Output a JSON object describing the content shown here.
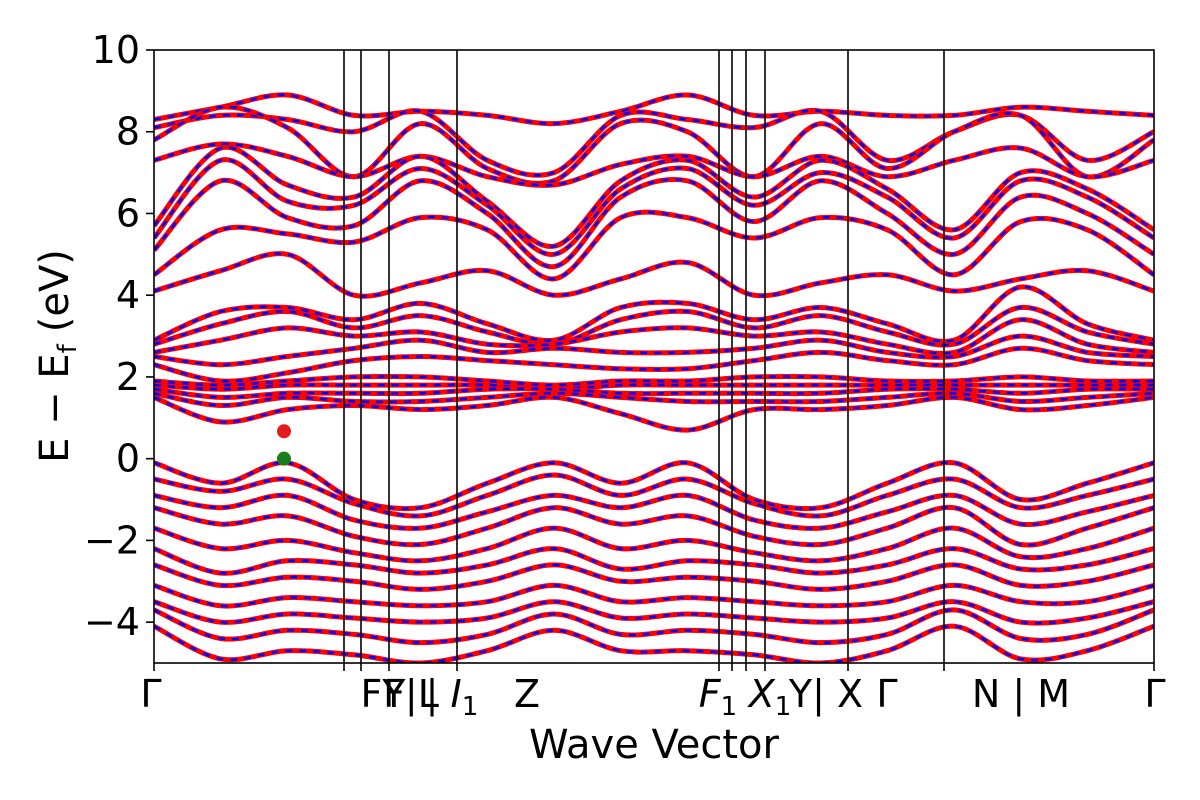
{
  "chart_data": {
    "type": "line",
    "xlabel": "Wave Vector",
    "ylabel": "E − E",
    "ylabel_sub": "f",
    "ylabel_unit": "(eV)",
    "ylim": [
      -5,
      10
    ],
    "y_ticks": [
      "10",
      "8",
      "6",
      "4",
      "2",
      "0",
      "−2",
      "−4"
    ],
    "y_tick_values": [
      10,
      8,
      6,
      4,
      2,
      0,
      -2,
      -4
    ],
    "x_range": [
      0,
      1.0
    ],
    "k_points": [
      {
        "label": "Γ",
        "x": 0.0
      },
      {
        "label": "FY",
        "x": 0.19
      },
      {
        "label": "F|L",
        "x": 0.207
      },
      {
        "label": "| I1",
        "x": 0.235
      },
      {
        "label": "Z",
        "x": 0.303
      },
      {
        "label": "F1",
        "x": 0.565
      },
      {
        "label": "X1",
        "x": 0.578
      },
      {
        "label": "Y|",
        "x": 0.592
      },
      {
        "label": "X",
        "x": 0.611
      },
      {
        "label": "Γ",
        "x": 0.694
      },
      {
        "label": "N | M",
        "x": 0.79
      },
      {
        "label": "Γ",
        "x": 1.0
      }
    ],
    "tick_label_text": [
      "Γ",
      "FY",
      "F|L",
      "| I",
      "1",
      "Z",
      "F",
      "1",
      "X",
      "1",
      "Y| X",
      "Γ",
      "N | M",
      "Γ"
    ],
    "series": [
      {
        "color": "#ff0000",
        "style": "solid"
      },
      {
        "color": "#0000ff",
        "style": "dashed"
      }
    ],
    "markers": [
      {
        "x": 0.13,
        "y": 0.67,
        "color": "#e41a1c"
      },
      {
        "x": 0.13,
        "y": 0.0,
        "color": "#1a7f1a"
      }
    ],
    "bands": [
      [
        8.3,
        8.6,
        8.9,
        8.4,
        8.5,
        8.4,
        8.2,
        8.5,
        8.9,
        8.4,
        8.5,
        8.4,
        8.4,
        8.6,
        8.5,
        8.4
      ],
      [
        8.1,
        8.4,
        8.3,
        8.0,
        8.5,
        7.3,
        7.0,
        8.4,
        8.3,
        8.1,
        8.5,
        7.3,
        8.0,
        8.4,
        7.3,
        8.0
      ],
      [
        7.8,
        8.6,
        8.1,
        6.9,
        8.2,
        7.1,
        6.8,
        8.2,
        8.0,
        6.9,
        8.2,
        7.1,
        8.0,
        8.4,
        6.9,
        7.8
      ],
      [
        7.3,
        7.7,
        7.4,
        6.9,
        7.4,
        6.9,
        6.7,
        7.2,
        7.4,
        6.9,
        7.4,
        6.9,
        7.3,
        7.6,
        6.9,
        7.3
      ],
      [
        5.7,
        7.6,
        6.7,
        6.4,
        7.4,
        6.3,
        5.2,
        6.8,
        7.3,
        6.4,
        7.3,
        6.6,
        5.6,
        7.0,
        6.6,
        5.6
      ],
      [
        5.4,
        7.3,
        6.3,
        6.2,
        7.1,
        6.2,
        5.0,
        6.6,
        7.1,
        6.2,
        7.0,
        6.4,
        5.4,
        6.8,
        6.4,
        5.4
      ],
      [
        5.1,
        6.8,
        5.9,
        5.7,
        6.8,
        6.0,
        4.7,
        6.4,
        6.8,
        5.8,
        6.8,
        6.0,
        5.0,
        6.4,
        6.0,
        5.0
      ],
      [
        4.5,
        5.6,
        5.5,
        5.3,
        5.9,
        5.6,
        4.4,
        5.9,
        5.9,
        5.4,
        5.9,
        5.6,
        4.5,
        5.8,
        5.6,
        4.5
      ],
      [
        4.1,
        4.6,
        5.0,
        4.0,
        4.3,
        4.6,
        4.0,
        4.4,
        4.8,
        4.0,
        4.3,
        4.5,
        4.1,
        4.4,
        4.6,
        4.1
      ],
      [
        2.9,
        3.6,
        3.7,
        3.4,
        3.8,
        3.3,
        2.9,
        3.7,
        3.8,
        3.4,
        3.7,
        3.3,
        2.9,
        4.2,
        3.3,
        2.9
      ],
      [
        2.8,
        3.3,
        3.6,
        3.2,
        3.5,
        3.1,
        2.8,
        3.4,
        3.6,
        3.2,
        3.5,
        3.1,
        2.8,
        3.7,
        3.1,
        2.8
      ],
      [
        2.6,
        2.9,
        3.2,
        3.0,
        3.1,
        2.8,
        2.8,
        3.1,
        3.2,
        3.0,
        3.1,
        2.8,
        2.6,
        3.4,
        2.8,
        2.6
      ],
      [
        2.5,
        2.3,
        2.5,
        2.7,
        2.9,
        2.6,
        2.7,
        2.6,
        2.6,
        2.7,
        2.9,
        2.6,
        2.5,
        3.0,
        2.6,
        2.5
      ],
      [
        2.3,
        1.9,
        2.1,
        2.4,
        2.5,
        2.4,
        2.3,
        2.2,
        2.2,
        2.4,
        2.6,
        2.4,
        2.3,
        2.7,
        2.4,
        2.3
      ],
      [
        1.9,
        1.8,
        1.9,
        2.0,
        2.0,
        1.9,
        1.8,
        1.9,
        1.9,
        2.0,
        2.0,
        1.9,
        1.9,
        2.0,
        1.9,
        1.9
      ],
      [
        1.8,
        1.7,
        1.8,
        1.8,
        1.8,
        1.8,
        1.7,
        1.8,
        1.8,
        1.8,
        1.8,
        1.8,
        1.8,
        1.8,
        1.8,
        1.8
      ],
      [
        1.7,
        1.5,
        1.6,
        1.6,
        1.6,
        1.7,
        1.7,
        1.6,
        1.6,
        1.6,
        1.6,
        1.7,
        1.7,
        1.6,
        1.7,
        1.7
      ],
      [
        1.6,
        1.3,
        1.5,
        1.4,
        1.4,
        1.5,
        1.6,
        1.5,
        1.4,
        1.4,
        1.4,
        1.5,
        1.6,
        1.4,
        1.5,
        1.6
      ],
      [
        1.5,
        0.9,
        1.2,
        1.3,
        1.2,
        1.3,
        1.5,
        1.1,
        0.7,
        1.2,
        1.2,
        1.3,
        1.5,
        1.2,
        1.3,
        1.5
      ],
      [
        -0.1,
        -0.6,
        -0.1,
        -1.0,
        -1.2,
        -0.6,
        -0.1,
        -0.6,
        -0.1,
        -1.0,
        -1.2,
        -0.6,
        -0.1,
        -1.0,
        -0.6,
        -0.1
      ],
      [
        -0.5,
        -0.8,
        -0.5,
        -1.1,
        -1.4,
        -0.9,
        -0.4,
        -0.9,
        -0.5,
        -1.1,
        -1.4,
        -0.9,
        -0.5,
        -1.2,
        -0.9,
        -0.5
      ],
      [
        -0.9,
        -1.2,
        -0.9,
        -1.5,
        -1.7,
        -1.3,
        -0.9,
        -1.2,
        -0.9,
        -1.5,
        -1.7,
        -1.3,
        -0.9,
        -1.6,
        -1.3,
        -0.9
      ],
      [
        -1.2,
        -1.6,
        -1.4,
        -1.9,
        -2.1,
        -1.7,
        -1.2,
        -1.6,
        -1.4,
        -1.9,
        -2.1,
        -1.7,
        -1.2,
        -2.1,
        -1.7,
        -1.2
      ],
      [
        -1.7,
        -2.2,
        -2.0,
        -2.3,
        -2.5,
        -2.2,
        -1.7,
        -2.2,
        -2.0,
        -2.3,
        -2.5,
        -2.2,
        -1.7,
        -2.4,
        -2.2,
        -1.7
      ],
      [
        -2.2,
        -2.8,
        -2.5,
        -2.6,
        -2.8,
        -2.6,
        -2.2,
        -2.7,
        -2.5,
        -2.6,
        -2.8,
        -2.6,
        -2.2,
        -2.7,
        -2.6,
        -2.2
      ],
      [
        -2.6,
        -3.1,
        -2.9,
        -3.0,
        -3.2,
        -3.0,
        -2.6,
        -3.0,
        -2.9,
        -3.0,
        -3.2,
        -3.0,
        -2.6,
        -3.1,
        -3.0,
        -2.6
      ],
      [
        -3.1,
        -3.6,
        -3.4,
        -3.5,
        -3.6,
        -3.5,
        -3.1,
        -3.5,
        -3.4,
        -3.5,
        -3.6,
        -3.5,
        -3.1,
        -3.5,
        -3.5,
        -3.1
      ],
      [
        -3.5,
        -4.0,
        -3.8,
        -3.9,
        -4.0,
        -3.9,
        -3.5,
        -3.9,
        -3.8,
        -3.9,
        -4.0,
        -3.9,
        -3.5,
        -4.0,
        -3.9,
        -3.5
      ],
      [
        -3.7,
        -4.4,
        -4.2,
        -4.3,
        -4.5,
        -4.3,
        -3.8,
        -4.3,
        -4.2,
        -4.3,
        -4.5,
        -4.3,
        -3.7,
        -4.4,
        -4.3,
        -3.7
      ],
      [
        -4.1,
        -4.9,
        -4.7,
        -4.8,
        -5.0,
        -4.7,
        -4.2,
        -4.7,
        -4.7,
        -4.8,
        -5.0,
        -4.7,
        -4.1,
        -4.9,
        -4.7,
        -4.1
      ]
    ]
  }
}
